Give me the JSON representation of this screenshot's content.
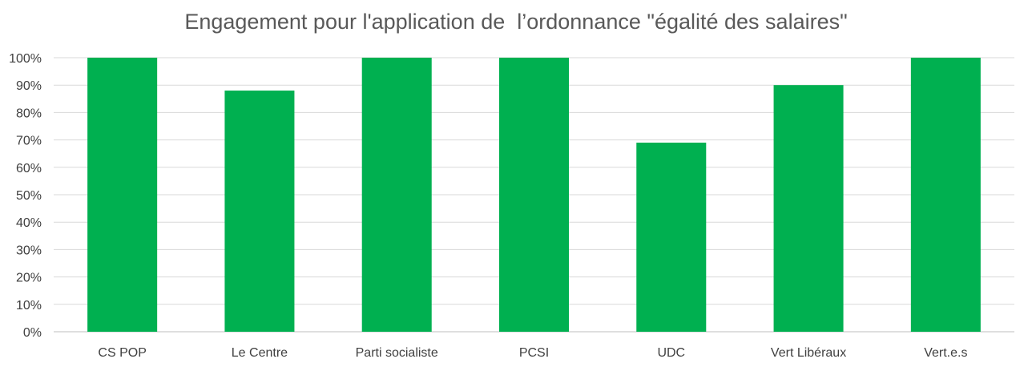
{
  "chart_data": {
    "type": "bar",
    "title": "Engagement pour l'application de  l’ordonnance \"égalité des salaires\"",
    "xlabel": "",
    "ylabel": "",
    "categories": [
      "CS POP",
      "Le Centre",
      "Parti socialiste",
      "PCSI",
      "UDC",
      "Vert Libéraux",
      "Vert.e.s"
    ],
    "values": [
      100,
      88,
      100,
      100,
      69,
      90,
      100
    ],
    "ylim": [
      0,
      100
    ],
    "yticks": [
      "0%",
      "10%",
      "20%",
      "30%",
      "40%",
      "50%",
      "60%",
      "70%",
      "80%",
      "90%",
      "100%"
    ],
    "bar_color": "#00b050",
    "grid": true,
    "legend": "none"
  }
}
